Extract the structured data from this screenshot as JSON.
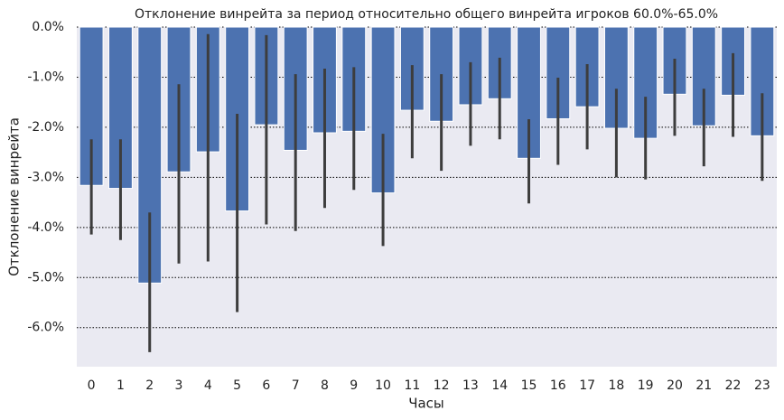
{
  "chart_data": {
    "type": "bar",
    "title": "Отклонение винрейта за период относительно общего винрейта игроков 60.0%-65.0%",
    "x_label": "Часы",
    "y_label": "Отклонение винрейта",
    "categories": [
      "0",
      "1",
      "2",
      "3",
      "4",
      "5",
      "6",
      "7",
      "8",
      "9",
      "10",
      "11",
      "12",
      "13",
      "14",
      "15",
      "16",
      "17",
      "18",
      "19",
      "20",
      "21",
      "22",
      "23"
    ],
    "values": [
      -3.16,
      -3.22,
      -5.11,
      -2.89,
      -2.49,
      -3.67,
      -1.95,
      -2.46,
      -2.11,
      -2.08,
      -3.31,
      -1.66,
      -1.88,
      -1.55,
      -1.43,
      -2.62,
      -1.83,
      -1.59,
      -2.02,
      -2.22,
      -1.34,
      -1.97,
      -1.36,
      -2.17
    ],
    "ci_low": [
      -4.14,
      -4.25,
      -6.49,
      -4.72,
      -4.68,
      -5.69,
      -3.94,
      -4.07,
      -3.61,
      -3.25,
      -4.37,
      -2.62,
      -2.87,
      -2.37,
      -2.24,
      -3.52,
      -2.75,
      -2.44,
      -3.0,
      -3.04,
      -2.17,
      -2.78,
      -2.19,
      -3.07
    ],
    "ci_high": [
      -2.24,
      -2.24,
      -3.7,
      -1.14,
      -0.14,
      -1.73,
      -0.16,
      -0.94,
      -0.83,
      -0.8,
      -2.13,
      -0.76,
      -0.94,
      -0.7,
      -0.61,
      -1.84,
      -1.01,
      -0.74,
      -1.23,
      -1.39,
      -0.63,
      -1.23,
      -0.52,
      -1.32
    ],
    "color": "#4c72b0",
    "error_color": "#3d3d3d",
    "ylim": [
      -6.78,
      0
    ],
    "yticks": [
      {
        "value": 0,
        "label": "0.0%"
      },
      {
        "value": -1,
        "label": "-1.0%"
      },
      {
        "value": -2,
        "label": "-2.0%"
      },
      {
        "value": -3,
        "label": "-3.0%"
      },
      {
        "value": -4,
        "label": "-4.0%"
      },
      {
        "value": -5,
        "label": "-5.0%"
      },
      {
        "value": -6,
        "label": "-6.0%"
      }
    ],
    "grid": true
  }
}
